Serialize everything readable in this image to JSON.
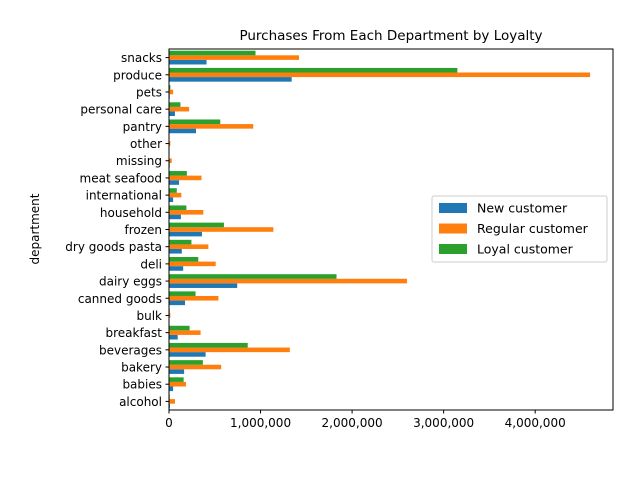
{
  "chart_data": {
    "type": "bar",
    "orientation": "horizontal",
    "title": "Purchases From Each Department by Loyalty",
    "xlabel": "",
    "ylabel": "department",
    "xlim": [
      0,
      4850000
    ],
    "xticks": [
      0,
      1000000,
      2000000,
      3000000,
      4000000
    ],
    "xtick_labels": [
      "0",
      "1,000,000",
      "2,000,000",
      "3,000,000",
      "4,000,000"
    ],
    "grid": false,
    "legend_position": "center-right",
    "categories": [
      "alcohol",
      "babies",
      "bakery",
      "beverages",
      "breakfast",
      "bulk",
      "canned goods",
      "dairy eggs",
      "deli",
      "dry goods pasta",
      "frozen",
      "household",
      "international",
      "meat seafood",
      "missing",
      "other",
      "pantry",
      "personal care",
      "pets",
      "produce",
      "snacks"
    ],
    "series": [
      {
        "name": "New customer",
        "color": "#1f77b4",
        "values": [
          10000,
          45000,
          165000,
          400000,
          95000,
          3000,
          175000,
          745000,
          155000,
          140000,
          360000,
          130000,
          45000,
          110000,
          8000,
          4000,
          295000,
          65000,
          8000,
          1340000,
          410000
        ]
      },
      {
        "name": "Regular customer",
        "color": "#ff7f0e",
        "values": [
          65000,
          185000,
          570000,
          1320000,
          345000,
          15000,
          540000,
          2600000,
          510000,
          430000,
          1140000,
          375000,
          135000,
          355000,
          30000,
          15000,
          920000,
          220000,
          45000,
          4600000,
          1420000
        ]
      },
      {
        "name": "Loyal customer",
        "color": "#2ca02c",
        "values": [
          8000,
          160000,
          370000,
          860000,
          225000,
          8000,
          290000,
          1830000,
          320000,
          245000,
          600000,
          190000,
          85000,
          195000,
          5000,
          3000,
          560000,
          125000,
          15000,
          3150000,
          945000
        ]
      }
    ]
  }
}
